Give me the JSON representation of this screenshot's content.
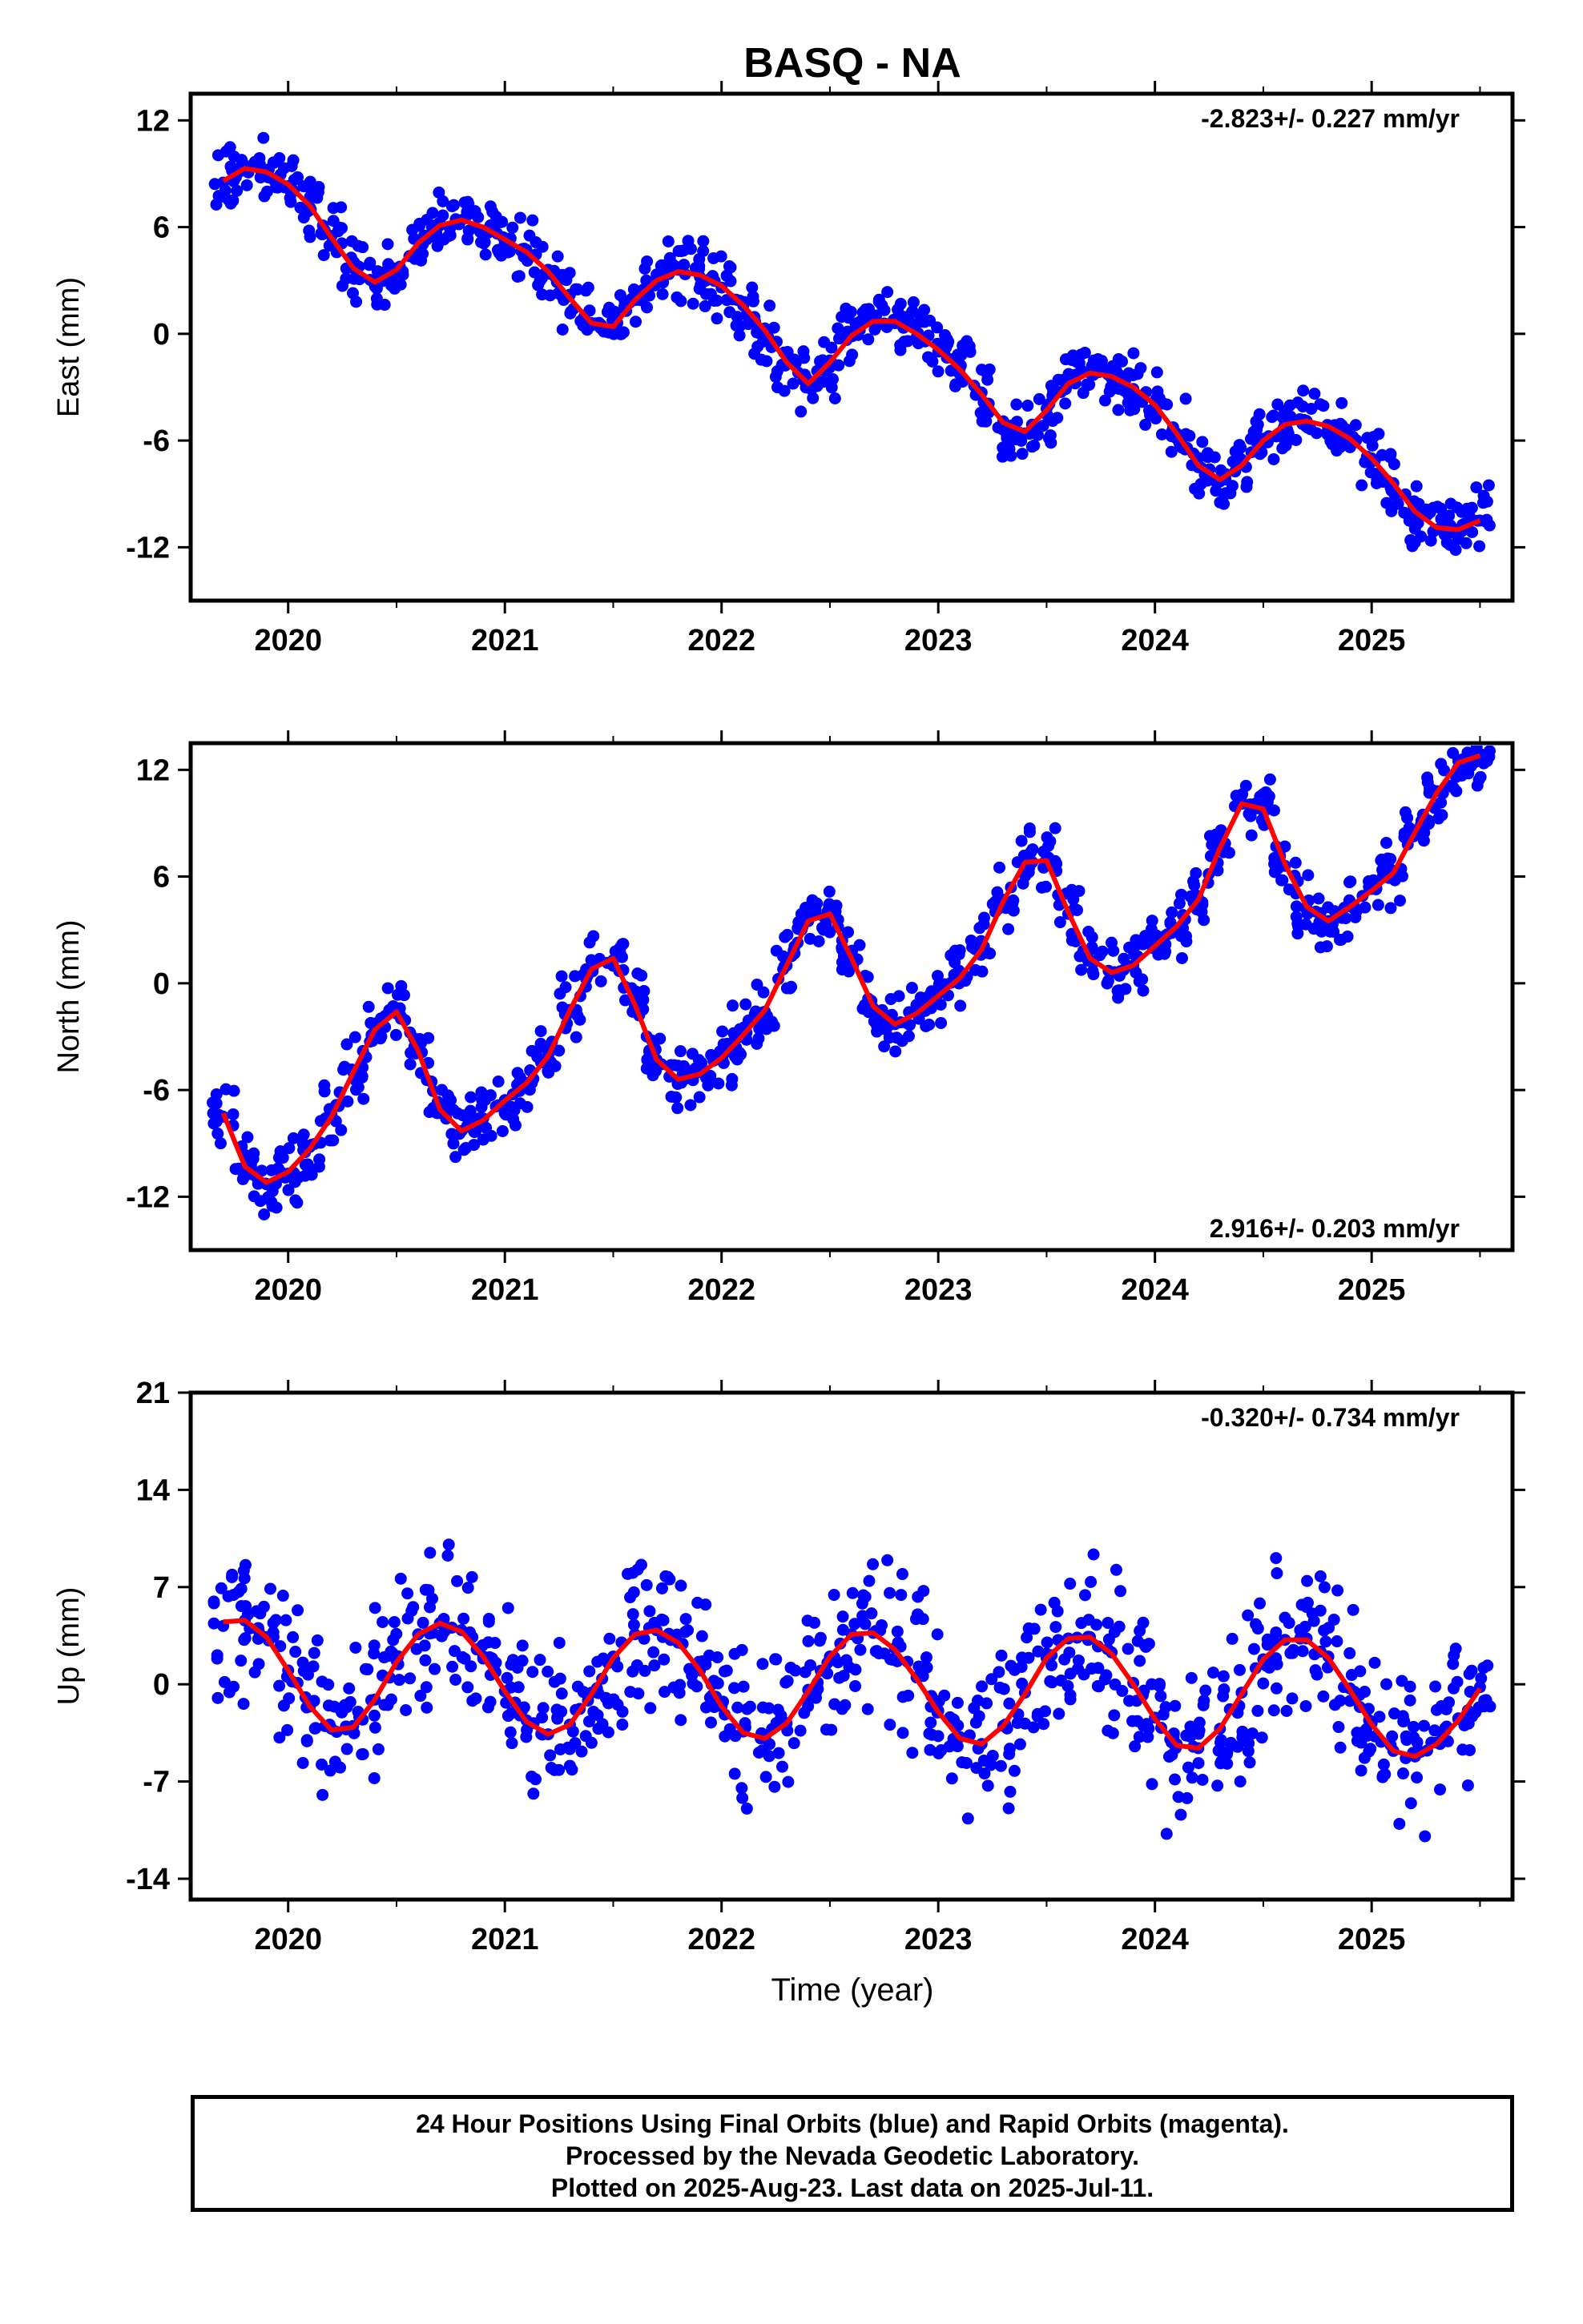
{
  "title": "BASQ - NA",
  "x_axis_label": "Time (year)",
  "footer": [
    "24 Hour Positions Using Final Orbits (blue) and Rapid Orbits (magenta).",
    "Processed by the Nevada Geodetic Laboratory.",
    "Plotted on 2025-Aug-23. Last data on 2025-Jul-11."
  ],
  "colors": {
    "data_points": "#0000ff",
    "model_fit": "#ff0000",
    "frame": "#000000"
  },
  "chart_data": [
    {
      "type": "scatter",
      "component": "East",
      "ylabel": "East (mm)",
      "rate_label": "-2.823+/- 0.227 mm/yr",
      "rate_position": "top-right",
      "xlim": [
        2019.55,
        2025.65
      ],
      "ylim": [
        -15,
        13.5
      ],
      "yticks": [
        -12,
        -6,
        0,
        6,
        12
      ],
      "xticks": [
        2020,
        2021,
        2022,
        2023,
        2024,
        2025
      ],
      "series": [
        {
          "values_role": "daily positions",
          "x": [
            2019.7,
            2019.8,
            2019.9,
            2020.0,
            2020.1,
            2020.2,
            2020.3,
            2020.4,
            2020.5,
            2020.6,
            2020.7,
            2020.8,
            2020.9,
            2021.0,
            2021.1,
            2021.2,
            2021.3,
            2021.4,
            2021.5,
            2021.6,
            2021.7,
            2021.8,
            2021.9,
            2022.0,
            2022.1,
            2022.2,
            2022.3,
            2022.4,
            2022.5,
            2022.6,
            2022.7,
            2022.8,
            2022.9,
            2023.0,
            2023.1,
            2023.2,
            2023.3,
            2023.4,
            2023.5,
            2023.6,
            2023.7,
            2023.8,
            2023.9,
            2024.0,
            2024.1,
            2024.2,
            2024.3,
            2024.4,
            2024.5,
            2024.6,
            2024.7,
            2024.8,
            2024.9,
            2025.0,
            2025.1,
            2025.2,
            2025.3,
            2025.4,
            2025.5
          ],
          "y": [
            8.5,
            9.4,
            9.1,
            8.3,
            7.1,
            5.5,
            3.7,
            2.8,
            3.5,
            5.2,
            6.1,
            6.4,
            5.8,
            5.2,
            4.6,
            3.6,
            2.2,
            0.6,
            0.3,
            1.9,
            3.1,
            3.6,
            3.2,
            2.6,
            1.6,
            0.3,
            -1.7,
            -2.9,
            -1.5,
            0.0,
            0.8,
            0.6,
            -0.2,
            -1.0,
            -1.9,
            -3.3,
            -5.1,
            -5.6,
            -4.2,
            -2.7,
            -2.2,
            -2.5,
            -3.1,
            -4.1,
            -5.6,
            -7.5,
            -8.3,
            -7.3,
            -5.9,
            -5.1,
            -4.9,
            -5.3,
            -6.0,
            -7.0,
            -8.4,
            -10.1,
            -11.0,
            -11.0,
            -10.5
          ],
          "fit": [
            8.6,
            9.3,
            9.1,
            8.4,
            7.2,
            5.4,
            3.7,
            2.9,
            3.6,
            5.1,
            6.1,
            6.4,
            6.0,
            5.3,
            4.6,
            3.5,
            2.0,
            0.6,
            0.4,
            1.9,
            3.0,
            3.5,
            3.3,
            2.7,
            1.6,
            0.2,
            -1.6,
            -2.8,
            -1.6,
            -0.1,
            0.7,
            0.7,
            0.0,
            -0.9,
            -2.0,
            -3.4,
            -5.0,
            -5.5,
            -4.3,
            -2.8,
            -2.2,
            -2.4,
            -3.0,
            -4.0,
            -5.6,
            -7.4,
            -8.2,
            -7.4,
            -6.0,
            -5.1,
            -4.9,
            -5.2,
            -5.9,
            -7.0,
            -8.4,
            -10.0,
            -10.9,
            -11.0,
            -10.5
          ]
        }
      ]
    },
    {
      "type": "scatter",
      "component": "North",
      "ylabel": "North (mm)",
      "rate_label": "2.916+/- 0.203 mm/yr",
      "rate_position": "bottom-right",
      "xlim": [
        2019.55,
        2025.65
      ],
      "ylim": [
        -15,
        13.5
      ],
      "yticks": [
        -12,
        -6,
        0,
        6,
        12
      ],
      "xticks": [
        2020,
        2021,
        2022,
        2023,
        2024,
        2025
      ],
      "series": [
        {
          "values_role": "daily positions",
          "x": [
            2019.7,
            2019.8,
            2019.9,
            2020.0,
            2020.1,
            2020.2,
            2020.3,
            2020.4,
            2020.5,
            2020.6,
            2020.7,
            2020.8,
            2020.9,
            2021.0,
            2021.1,
            2021.2,
            2021.3,
            2021.4,
            2021.5,
            2021.6,
            2021.7,
            2021.8,
            2021.9,
            2022.0,
            2022.1,
            2022.2,
            2022.3,
            2022.4,
            2022.5,
            2022.6,
            2022.7,
            2022.8,
            2022.9,
            2023.0,
            2023.1,
            2023.2,
            2023.3,
            2023.4,
            2023.5,
            2023.6,
            2023.7,
            2023.8,
            2023.9,
            2024.0,
            2024.1,
            2024.2,
            2024.3,
            2024.4,
            2024.5,
            2024.6,
            2024.7,
            2024.8,
            2024.9,
            2025.0,
            2025.1,
            2025.2,
            2025.3,
            2025.4,
            2025.5
          ],
          "y": [
            -7.5,
            -10.4,
            -11.3,
            -10.7,
            -9.2,
            -7.4,
            -5.0,
            -2.7,
            -1.7,
            -3.8,
            -7.2,
            -8.3,
            -7.6,
            -6.6,
            -5.6,
            -4.2,
            -1.5,
            0.8,
            1.3,
            -1.3,
            -4.3,
            -5.5,
            -5.0,
            -4.1,
            -2.9,
            -1.6,
            1.0,
            3.5,
            3.8,
            1.3,
            -1.4,
            -2.3,
            -1.6,
            -0.6,
            0.4,
            1.9,
            4.7,
            6.8,
            6.8,
            3.9,
            1.3,
            0.6,
            1.0,
            2.1,
            3.1,
            4.7,
            7.7,
            10.2,
            9.7,
            6.6,
            4.2,
            3.5,
            4.4,
            5.3,
            6.2,
            8.6,
            10.8,
            12.5,
            12.9
          ],
          "fit": [
            -7.3,
            -10.3,
            -11.2,
            -10.6,
            -9.3,
            -7.5,
            -5.0,
            -2.6,
            -1.6,
            -3.8,
            -7.1,
            -8.3,
            -7.7,
            -6.6,
            -5.6,
            -4.1,
            -1.5,
            0.8,
            1.4,
            -1.2,
            -4.3,
            -5.4,
            -5.1,
            -4.2,
            -2.9,
            -1.5,
            1.0,
            3.5,
            3.9,
            1.4,
            -1.3,
            -2.3,
            -1.7,
            -0.7,
            0.3,
            1.9,
            4.6,
            6.8,
            6.9,
            4.0,
            1.4,
            0.6,
            1.0,
            2.1,
            3.2,
            4.7,
            7.6,
            10.1,
            9.8,
            6.7,
            4.3,
            3.5,
            4.3,
            5.2,
            6.2,
            8.5,
            10.7,
            12.4,
            12.8
          ]
        }
      ]
    },
    {
      "type": "scatter",
      "component": "Up",
      "ylabel": "Up (mm)",
      "rate_label": "-0.320+/- 0.734 mm/yr",
      "rate_position": "top-right",
      "xlim": [
        2019.55,
        2025.65
      ],
      "ylim": [
        -15.5,
        21
      ],
      "yticks": [
        -14,
        -7,
        0,
        7,
        14,
        21
      ],
      "xticks": [
        2020,
        2021,
        2022,
        2023,
        2024,
        2025
      ],
      "series": [
        {
          "values_role": "daily positions",
          "x": [
            2019.7,
            2019.8,
            2019.9,
            2020.0,
            2020.1,
            2020.2,
            2020.3,
            2020.4,
            2020.5,
            2020.6,
            2020.7,
            2020.8,
            2020.9,
            2021.0,
            2021.1,
            2021.2,
            2021.3,
            2021.4,
            2021.5,
            2021.6,
            2021.7,
            2021.8,
            2021.9,
            2022.0,
            2022.1,
            2022.2,
            2022.3,
            2022.4,
            2022.5,
            2022.6,
            2022.7,
            2022.8,
            2022.9,
            2023.0,
            2023.1,
            2023.2,
            2023.3,
            2023.4,
            2023.5,
            2023.6,
            2023.7,
            2023.8,
            2023.9,
            2024.0,
            2024.1,
            2024.2,
            2024.3,
            2024.4,
            2024.5,
            2024.6,
            2024.7,
            2024.8,
            2024.9,
            2025.0,
            2025.1,
            2025.2,
            2025.3,
            2025.4,
            2025.5
          ],
          "y": [
            4.2,
            4.6,
            3.4,
            1.0,
            -1.6,
            -3.2,
            -3.0,
            -1.1,
            1.7,
            3.6,
            4.4,
            3.9,
            2.0,
            -0.5,
            -2.6,
            -3.6,
            -2.9,
            -0.6,
            2.0,
            3.6,
            3.9,
            3.0,
            1.0,
            -1.6,
            -3.4,
            -3.9,
            -2.8,
            -0.4,
            2.0,
            3.6,
            3.7,
            2.6,
            0.5,
            -1.9,
            -3.8,
            -4.3,
            -3.0,
            -0.6,
            1.9,
            3.3,
            3.4,
            2.3,
            0.1,
            -2.4,
            -4.3,
            -4.6,
            -3.2,
            -0.6,
            1.8,
            3.2,
            3.3,
            2.0,
            -0.3,
            -2.8,
            -4.8,
            -5.2,
            -4.2,
            -2.5,
            -0.2
          ],
          "fit": [
            4.5,
            4.6,
            3.4,
            1.0,
            -1.6,
            -3.3,
            -3.1,
            -1.1,
            1.6,
            3.6,
            4.4,
            3.8,
            2.0,
            -0.5,
            -2.7,
            -3.6,
            -2.9,
            -0.7,
            1.9,
            3.6,
            3.9,
            3.0,
            1.0,
            -1.6,
            -3.5,
            -3.9,
            -2.8,
            -0.5,
            2.0,
            3.6,
            3.7,
            2.5,
            0.4,
            -2.0,
            -3.9,
            -4.3,
            -3.0,
            -0.7,
            1.9,
            3.3,
            3.4,
            2.2,
            0.0,
            -2.5,
            -4.4,
            -4.6,
            -3.2,
            -0.7,
            1.8,
            3.2,
            3.2,
            1.9,
            -0.4,
            -2.9,
            -4.8,
            -5.2,
            -4.3,
            -2.6,
            -0.3
          ]
        }
      ]
    }
  ]
}
